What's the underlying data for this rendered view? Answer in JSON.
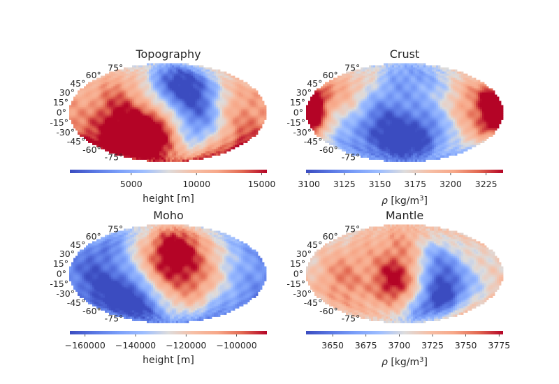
{
  "chart_data": [
    {
      "type": "heatmap",
      "projection": "mollweide",
      "title": "Topography",
      "lat_labels": [
        "75°",
        "60°",
        "45°",
        "30°",
        "15°",
        "0°",
        "-15°",
        "-30°",
        "-45°",
        "-60°",
        "-75°"
      ],
      "lat_values": [
        75,
        60,
        45,
        30,
        15,
        0,
        -15,
        -30,
        -45,
        -60,
        -75
      ],
      "colormap": "coolwarm",
      "colorbar": {
        "range": [
          300,
          15400
        ],
        "ticks": [
          5000,
          10000,
          15000
        ],
        "tick_labels": [
          "5000",
          "10000",
          "15000"
        ],
        "label": "height [m]"
      },
      "blobs": [
        {
          "lon": -80,
          "lat": -30,
          "v": 1.0,
          "s": 40
        },
        {
          "lon": -20,
          "lat": -30,
          "v": 0.9,
          "s": 30
        },
        {
          "lon": -110,
          "lat": 35,
          "v": 0.45,
          "s": 40
        },
        {
          "lon": 20,
          "lat": 45,
          "v": -1.0,
          "s": 35
        },
        {
          "lon": 60,
          "lat": -15,
          "v": -0.6,
          "s": 30
        },
        {
          "lon": 140,
          "lat": 30,
          "v": 0.35,
          "s": 35
        },
        {
          "lon": 150,
          "lat": -30,
          "v": 0.5,
          "s": 35
        },
        {
          "lon": 80,
          "lat": 40,
          "v": -0.45,
          "s": 30
        },
        {
          "lon": -150,
          "lat": -60,
          "v": 0.55,
          "s": 30
        },
        {
          "lon": 100,
          "lat": 10,
          "v": 0.25,
          "s": 25
        }
      ]
    },
    {
      "type": "heatmap",
      "projection": "mollweide",
      "title": "Crust",
      "lat_labels": [
        "75°",
        "60°",
        "45°",
        "30°",
        "15°",
        "0°",
        "-15°",
        "-30°",
        "-45°",
        "-60°",
        "-75°"
      ],
      "lat_values": [
        75,
        60,
        45,
        30,
        15,
        0,
        -15,
        -30,
        -45,
        -60,
        -75
      ],
      "colormap": "coolwarm",
      "colorbar": {
        "range": [
          3098,
          3237
        ],
        "ticks": [
          3100,
          3125,
          3150,
          3175,
          3200,
          3225
        ],
        "tick_labels": [
          "3100",
          "3125",
          "3150",
          "3175",
          "3200",
          "3225"
        ],
        "label": "ρ [kg/m³]",
        "label_parts": [
          "ρ",
          " [kg/m",
          "3",
          "]"
        ]
      },
      "blobs": [
        {
          "lon": -175,
          "lat": 0,
          "v": 1.0,
          "s": 25
        },
        {
          "lon": 175,
          "lat": 0,
          "v": 0.9,
          "s": 25
        },
        {
          "lon": -40,
          "lat": -30,
          "v": -1.0,
          "s": 40
        },
        {
          "lon": 40,
          "lat": -40,
          "v": -0.8,
          "s": 35
        },
        {
          "lon": 120,
          "lat": 10,
          "v": 0.6,
          "s": 35
        },
        {
          "lon": -110,
          "lat": 30,
          "v": 0.4,
          "s": 30
        },
        {
          "lon": 0,
          "lat": 60,
          "v": -0.4,
          "s": 30
        },
        {
          "lon": 80,
          "lat": 50,
          "v": -0.3,
          "s": 25
        },
        {
          "lon": -150,
          "lat": -40,
          "v": -0.45,
          "s": 25
        }
      ]
    },
    {
      "type": "heatmap",
      "projection": "mollweide",
      "title": "Moho",
      "lat_labels": [
        "75°",
        "60°",
        "45°",
        "30°",
        "15°",
        "0°",
        "-15°",
        "-30°",
        "-45°",
        "-60°",
        "-75°"
      ],
      "lat_values": [
        75,
        60,
        45,
        30,
        15,
        0,
        -15,
        -30,
        -45,
        -60,
        -75
      ],
      "colormap": "coolwarm",
      "colorbar": {
        "range": [
          -166000,
          -88000
        ],
        "ticks": [
          -160000,
          -140000,
          -120000,
          -100000
        ],
        "tick_labels": [
          "−160000",
          "−140000",
          "−120000",
          "−100000"
        ],
        "label": "height [m]"
      },
      "blobs": [
        {
          "lon": 20,
          "lat": 40,
          "v": 1.0,
          "s": 35
        },
        {
          "lon": -10,
          "lat": 0,
          "v": 0.5,
          "s": 35
        },
        {
          "lon": 60,
          "lat": -20,
          "v": 0.5,
          "s": 30
        },
        {
          "lon": -120,
          "lat": -30,
          "v": -1.0,
          "s": 40
        },
        {
          "lon": -60,
          "lat": -40,
          "v": -0.7,
          "s": 30
        },
        {
          "lon": 150,
          "lat": 10,
          "v": -0.4,
          "s": 35
        },
        {
          "lon": -140,
          "lat": 40,
          "v": -0.5,
          "s": 30
        },
        {
          "lon": 100,
          "lat": 50,
          "v": 0.1,
          "s": 30
        },
        {
          "lon": 120,
          "lat": -50,
          "v": -0.3,
          "s": 30
        }
      ]
    },
    {
      "type": "heatmap",
      "projection": "mollweide",
      "title": "Mantle",
      "lat_labels": [
        "75°",
        "60°",
        "45°",
        "30°",
        "15°",
        "0°",
        "-15°",
        "-30°",
        "-45°",
        "-60°",
        "-75°"
      ],
      "lat_values": [
        75,
        60,
        45,
        30,
        15,
        0,
        -15,
        -30,
        -45,
        -60,
        -75
      ],
      "colormap": "coolwarm",
      "colorbar": {
        "range": [
          3630,
          3778
        ],
        "ticks": [
          3650,
          3675,
          3700,
          3725,
          3750,
          3775
        ],
        "tick_labels": [
          "3650",
          "3675",
          "3700",
          "3725",
          "3750",
          "3775"
        ],
        "label": "ρ [kg/m³]",
        "label_parts": [
          "ρ",
          " [kg/m",
          "3",
          "]"
        ]
      },
      "blobs": [
        {
          "lon": -20,
          "lat": -15,
          "v": 1.0,
          "s": 30
        },
        {
          "lon": -110,
          "lat": 0,
          "v": 0.6,
          "s": 35
        },
        {
          "lon": 0,
          "lat": 50,
          "v": 0.5,
          "s": 35
        },
        {
          "lon": 80,
          "lat": -30,
          "v": -1.0,
          "s": 30
        },
        {
          "lon": 60,
          "lat": 20,
          "v": -0.6,
          "s": 25
        },
        {
          "lon": -150,
          "lat": -50,
          "v": 0.3,
          "s": 30
        },
        {
          "lon": 150,
          "lat": 30,
          "v": 0.1,
          "s": 30
        },
        {
          "lon": 40,
          "lat": -60,
          "v": -0.3,
          "s": 25
        }
      ]
    }
  ],
  "colors": {
    "cmap_low": "#3b4cc0",
    "cmap_mid": "#dddddd",
    "cmap_high": "#b40426",
    "text": "#262626"
  }
}
